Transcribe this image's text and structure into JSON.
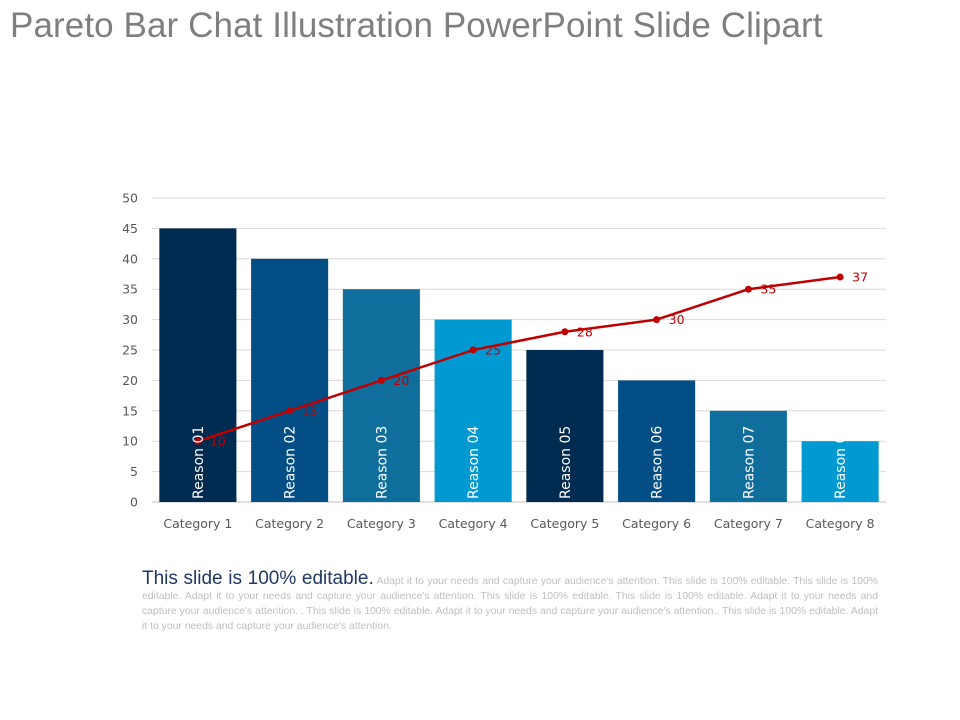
{
  "title": "Pareto Bar Chat Illustration PowerPoint Slide Clipart",
  "footer": {
    "lead": "This slide is 100% editable.",
    "body": "Adapt it to your needs and capture your audience's attention. This slide is 100% editable. This slide is 100% editable. Adapt it to your needs and capture your audience's attention. This slide is 100% editable. This slide is 100% editable. Adapt it to your needs and capture your audience's attention. . This slide is 100% editable. Adapt it to your needs and capture your audience's attention.. This slide is 100% editable. Adapt it to your needs and capture your audience's attention."
  },
  "chart_data": {
    "type": "bar",
    "categories": [
      "Category 1",
      "Category 2",
      "Category 3",
      "Category 4",
      "Category 5",
      "Category 6",
      "Category 7",
      "Category 8"
    ],
    "series": [
      {
        "type": "bar",
        "values": [
          45,
          40,
          35,
          30,
          25,
          20,
          15,
          10
        ],
        "point_labels": [
          "Reason 01",
          "Reason 02",
          "Reason 03",
          "Reason 04",
          "Reason 05",
          "Reason 06",
          "Reason 07",
          "Reason 08"
        ],
        "colors": [
          "#002b50",
          "#034f85",
          "#0f6e9c",
          "#0199d1",
          "#002b50",
          "#034f85",
          "#0f6e9c",
          "#0199d1"
        ]
      },
      {
        "type": "line",
        "values": [
          10,
          15,
          20,
          25,
          28,
          30,
          35,
          37
        ],
        "color": "#c00000"
      }
    ],
    "ylim": [
      0,
      50
    ],
    "yticks": [
      0,
      5,
      10,
      15,
      20,
      25,
      30,
      35,
      40,
      45,
      50
    ],
    "grid": true,
    "legend": "none"
  }
}
